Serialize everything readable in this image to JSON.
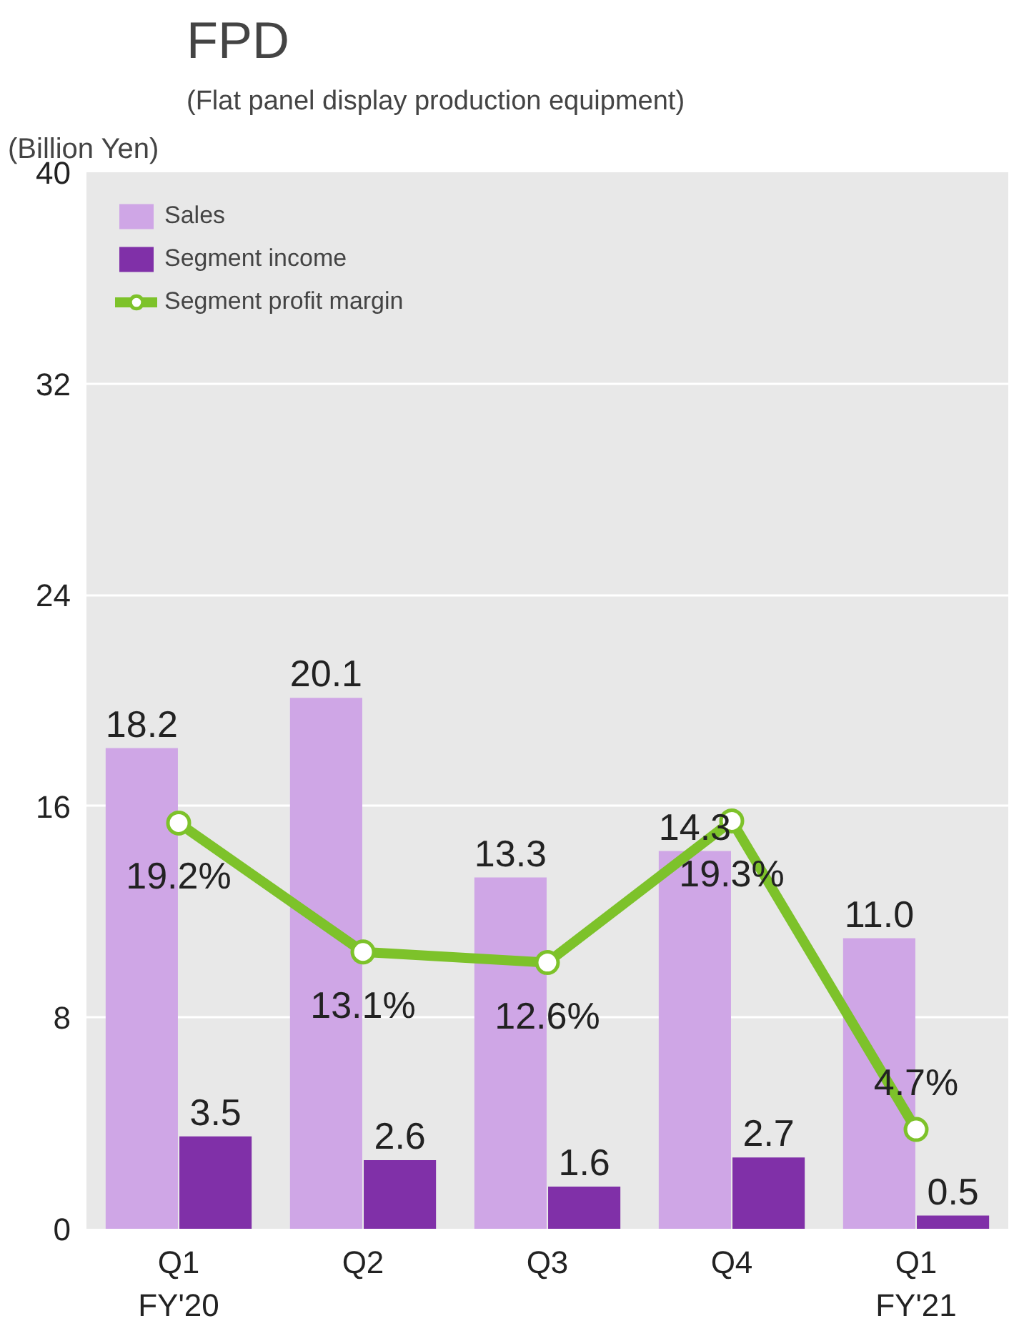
{
  "chart_data": {
    "type": "bar",
    "title": "FPD",
    "subtitle": "(Flat panel display production equipment)",
    "ylabel": "(Billion Yen)",
    "categories": [
      "Q1\nFY'20",
      "Q2",
      "Q3",
      "Q4",
      "Q1\nFY'21"
    ],
    "series": [
      {
        "name": "Sales",
        "color": "#cfa6e6",
        "values": [
          18.2,
          20.1,
          13.3,
          14.3,
          11.0
        ],
        "value_labels": [
          "18.2",
          "20.1",
          "13.3",
          "14.3",
          "11.0"
        ]
      },
      {
        "name": "Segment income",
        "color": "#8030a8",
        "values": [
          3.5,
          2.6,
          1.6,
          2.7,
          0.5
        ],
        "value_labels": [
          "3.5",
          "2.6",
          "1.6",
          "2.7",
          "0.5"
        ]
      },
      {
        "name": "Segment profit margin",
        "type": "line",
        "axis": "y2",
        "color": "#7dc22a",
        "marker": "circle",
        "values": [
          19.2,
          13.1,
          12.6,
          19.3,
          4.7
        ],
        "value_labels": [
          "19.2%",
          "13.1%",
          "12.6%",
          "19.3%",
          "4.7%"
        ]
      }
    ],
    "ylim": [
      0,
      40
    ],
    "yticks": [
      0,
      8,
      16,
      24,
      32,
      40
    ],
    "y2lim": [
      0,
      50
    ],
    "grid": "y",
    "legend": "top left"
  }
}
